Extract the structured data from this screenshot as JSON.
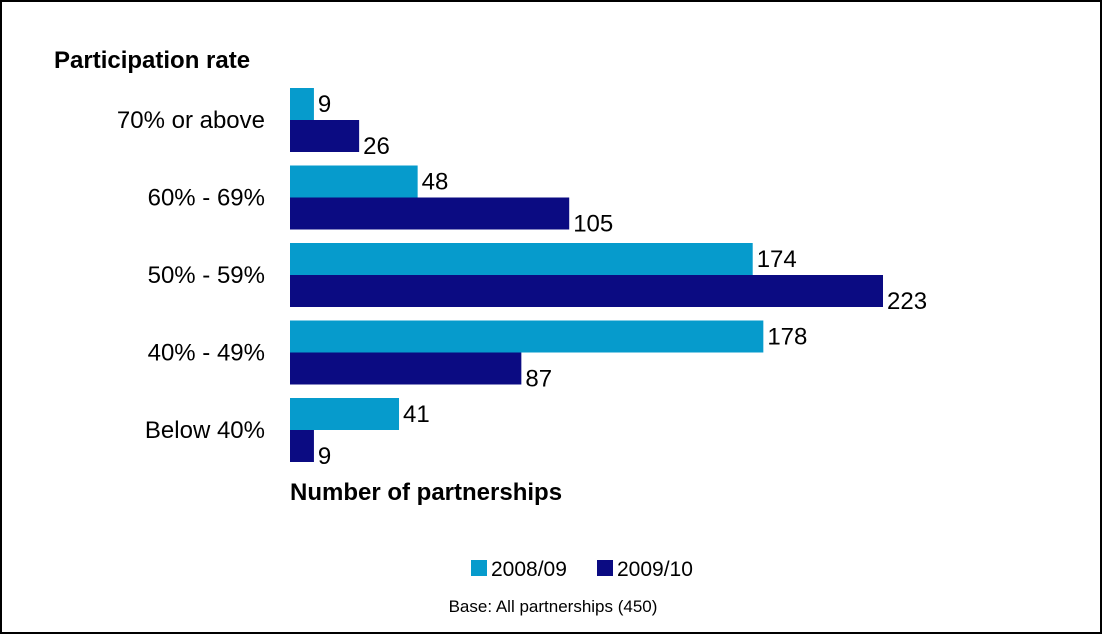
{
  "chart_data": {
    "type": "bar",
    "orientation": "horizontal",
    "ylabel": "Participation rate",
    "xlabel": "Number of partnerships",
    "categories": [
      "70% or above",
      "60% - 69%",
      "50% - 59%",
      "40% - 49%",
      "Below 40%"
    ],
    "series": [
      {
        "name": "2008/09",
        "values": [
          9,
          48,
          174,
          178,
          41
        ],
        "color": "#069bcc"
      },
      {
        "name": "2009/10",
        "values": [
          26,
          105,
          223,
          87,
          9
        ],
        "color": "#0b0b82"
      }
    ],
    "xlim": [
      0,
      223
    ],
    "grid": false,
    "legend_position": "bottom",
    "note": "Base: All partnerships (450)"
  }
}
